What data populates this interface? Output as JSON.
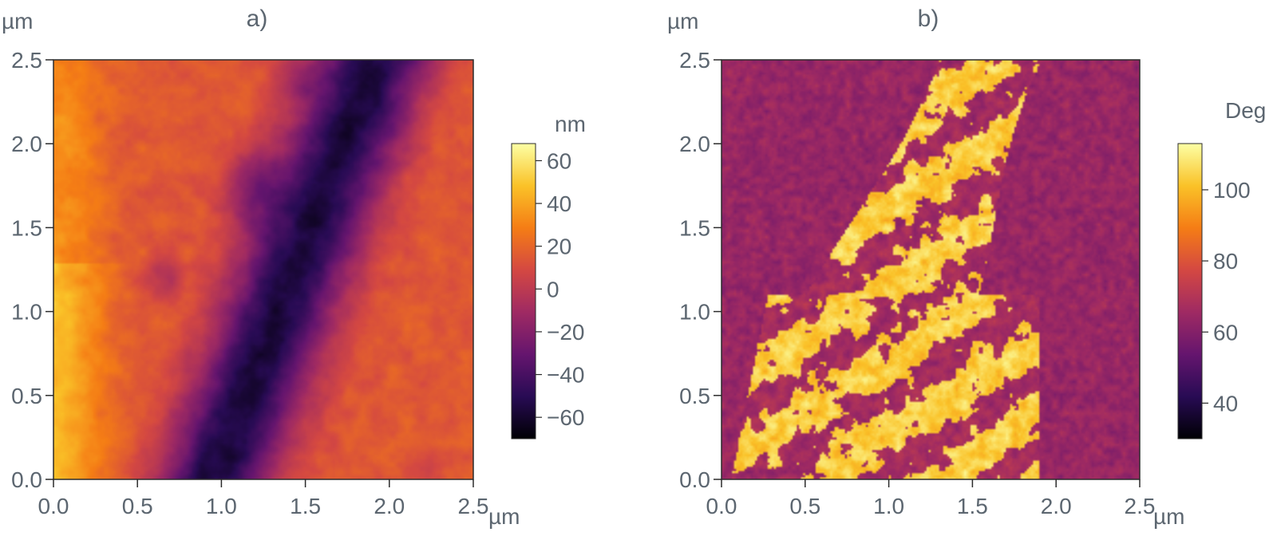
{
  "chart_data": [
    {
      "type": "heatmap",
      "panel_label": "a)",
      "axis_unit": "µm",
      "xlim": [
        0.0,
        2.5
      ],
      "ylim": [
        0.0,
        2.5
      ],
      "x_ticks": [
        "0.0",
        "0.5",
        "1.0",
        "1.5",
        "2.0",
        "2.5"
      ],
      "y_ticks": [
        "0.0",
        "0.5",
        "1.0",
        "1.5",
        "2.0",
        "2.5"
      ],
      "colorbar": {
        "unit": "nm",
        "range": [
          -70,
          68
        ],
        "ticks": [
          -60,
          -40,
          -20,
          0,
          20,
          40,
          60
        ],
        "tick_labels": [
          "−60",
          "−40",
          "−20",
          "0",
          "20",
          "40",
          "60"
        ]
      },
      "colormap": [
        "#000004",
        "#280b54",
        "#65156e",
        "#9f2a63",
        "#d44842",
        "#f57d15",
        "#fac228",
        "#fcffa4"
      ],
      "description_values": {
        "low_region_center_um": [
          1.2,
          1.75
        ],
        "low_region_min_nm": -65,
        "left_edge_max_nm": 68,
        "right_plateau_nm": 25
      }
    },
    {
      "type": "heatmap",
      "panel_label": "b)",
      "axis_unit": "µm",
      "xlim": [
        0.0,
        2.5
      ],
      "ylim": [
        0.0,
        2.5
      ],
      "x_ticks": [
        "0.0",
        "0.5",
        "1.0",
        "1.5",
        "2.0",
        "2.5"
      ],
      "y_ticks": [
        "0.0",
        "0.5",
        "1.0",
        "1.5",
        "2.0",
        "2.5"
      ],
      "colorbar": {
        "unit": "Deg",
        "range": [
          30,
          113
        ],
        "ticks": [
          40,
          60,
          80,
          100
        ],
        "tick_labels": [
          "40",
          "60",
          "80",
          "100"
        ]
      },
      "colormap": [
        "#000004",
        "#280b54",
        "#65156e",
        "#9f2a63",
        "#d44842",
        "#f57d15",
        "#fac228",
        "#fcffa4"
      ],
      "description_values": {
        "background_deg": 62,
        "bright_region_deg": 105
      }
    }
  ]
}
